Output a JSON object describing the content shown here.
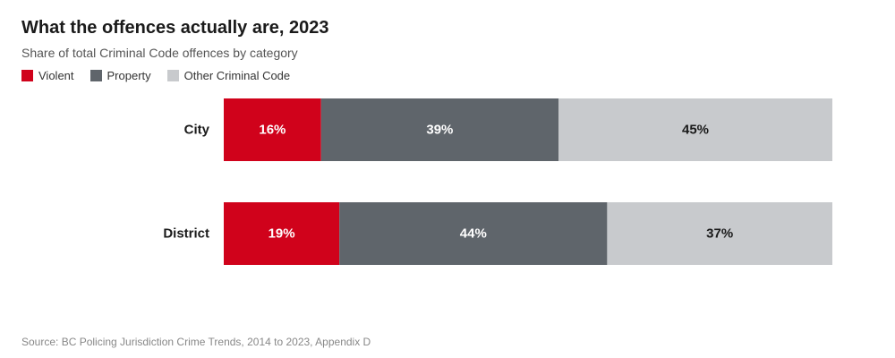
{
  "title": "What the offences actually are, 2023",
  "subtitle": "Share of total Criminal Code offences by category",
  "source": "Source: BC Policing Jurisdiction Crime Trends, 2014 to 2023, Appendix D",
  "legend": [
    {
      "label": "Violent",
      "color": "#d0021b"
    },
    {
      "label": "Property",
      "color": "#5f656b"
    },
    {
      "label": "Other Criminal Code",
      "color": "#c8cacd"
    }
  ],
  "chart_data": {
    "type": "bar",
    "orientation": "horizontal",
    "stacked": true,
    "normalized": true,
    "title": "What the offences actually are, 2023",
    "subtitle": "Share of total Criminal Code offences by category",
    "categories": [
      "City",
      "District"
    ],
    "series": [
      {
        "name": "Violent",
        "values": [
          16,
          19
        ],
        "color": "#d0021b",
        "label_color": "#ffffff"
      },
      {
        "name": "Property",
        "values": [
          39,
          44
        ],
        "color": "#5f656b",
        "label_color": "#ffffff"
      },
      {
        "name": "Other Criminal Code",
        "values": [
          45,
          37
        ],
        "color": "#c8cacd",
        "label_color": "#1a1a1a"
      }
    ],
    "value_suffix": "%",
    "xlim": [
      0,
      100
    ],
    "grid": false,
    "legend_position": "top-left"
  }
}
